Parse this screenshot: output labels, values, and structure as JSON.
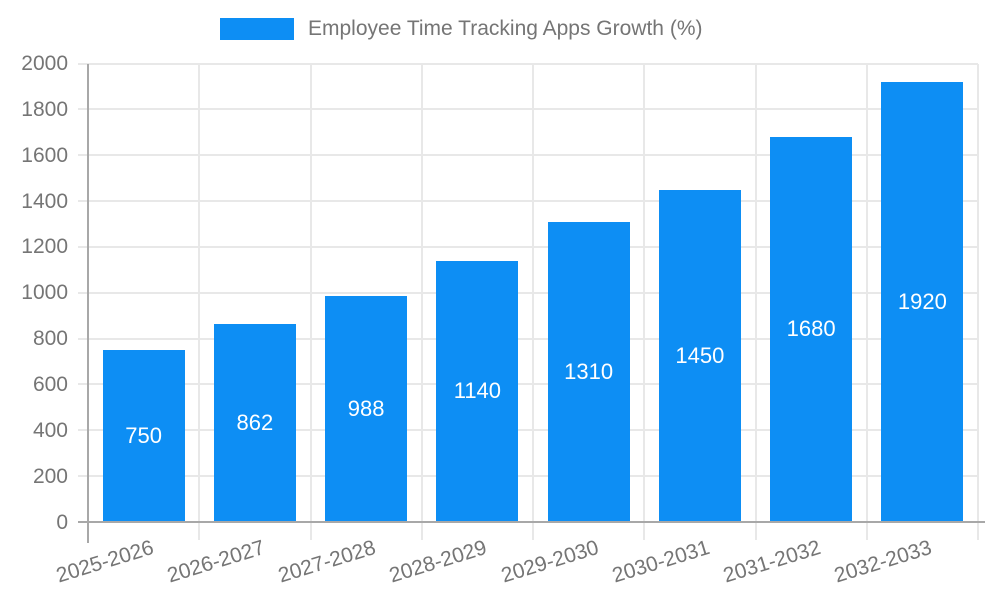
{
  "legend": {
    "label": "Employee Time Tracking Apps Growth (%)"
  },
  "chart_data": {
    "type": "bar",
    "title": "Employee Time Tracking Apps Growth (%)",
    "categories": [
      "2025-2026",
      "2026-2027",
      "2027-2028",
      "2028-2029",
      "2029-2030",
      "2030-2031",
      "2031-2032",
      "2032-2033"
    ],
    "values": [
      750,
      862,
      988,
      1140,
      1310,
      1450,
      1680,
      1920
    ],
    "value_labels": [
      "750",
      "862",
      "988",
      "1140",
      "1310",
      "1450",
      "1680",
      "1920"
    ],
    "xlabel": "",
    "ylabel": "",
    "ylim": [
      0,
      2000
    ],
    "y_tick_step": 200,
    "y_tick_labels": [
      "0",
      "200",
      "400",
      "600",
      "800",
      "1000",
      "1200",
      "1400",
      "1600",
      "1800",
      "2000"
    ],
    "grid": true,
    "legend_position": "top",
    "value_label_position": "inside-center",
    "colors": {
      "bar": "#0d8ef4",
      "value_label": "#ffffff",
      "axis_text": "#757575",
      "grid_line": "#e8e8e8",
      "axis_line": "#a8a8a8",
      "background": "#ffffff"
    }
  }
}
